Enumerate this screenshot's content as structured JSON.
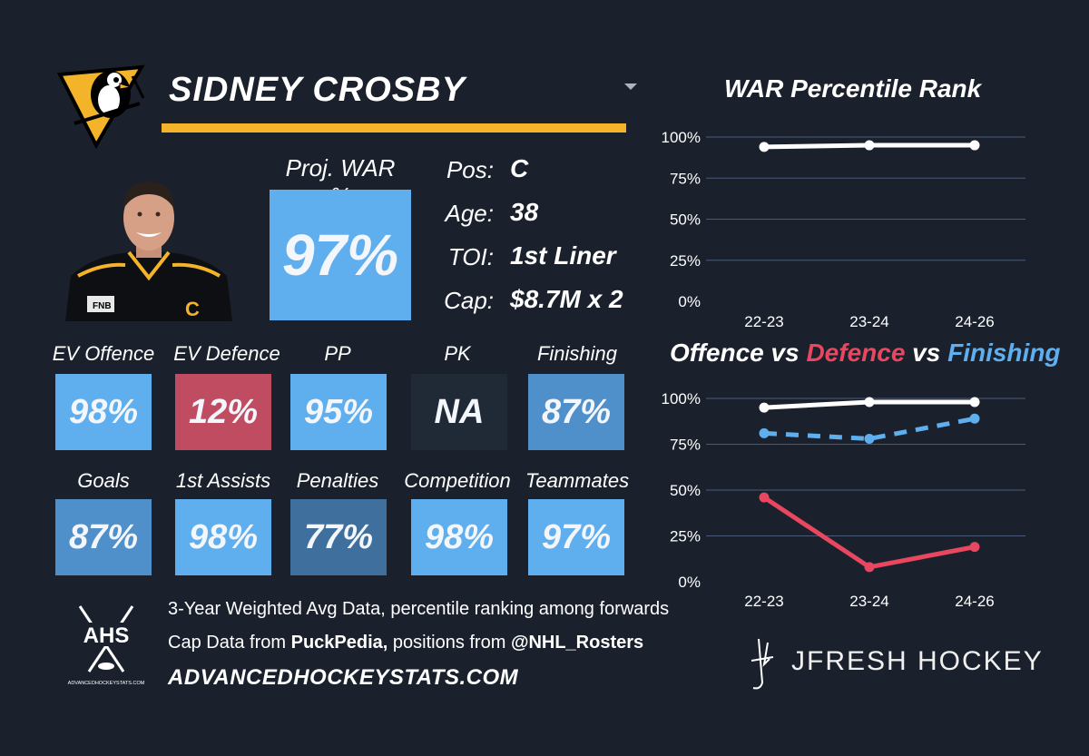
{
  "player": {
    "name": "SIDNEY CROSBY",
    "proj_war_label": "Proj. WAR %",
    "proj_war_value": "97%"
  },
  "info": {
    "pos_label": "Pos:",
    "pos_value": "C",
    "age_label": "Age:",
    "age_value": "38",
    "toi_label": "TOI:",
    "toi_value": "1st Liner",
    "cap_label": "Cap:",
    "cap_value": "$8.7M x 2"
  },
  "stats": [
    {
      "label": "EV Offence",
      "value": "98%",
      "color": "#5faeee"
    },
    {
      "label": "EV Defence",
      "value": "12%",
      "color": "#c04c62"
    },
    {
      "label": "PP",
      "value": "95%",
      "color": "#5faeee"
    },
    {
      "label": "PK",
      "value": "NA",
      "color": "#202a36"
    },
    {
      "label": "Finishing",
      "value": "87%",
      "color": "#4f8fca"
    },
    {
      "label": "Goals",
      "value": "87%",
      "color": "#4f8fca"
    },
    {
      "label": "1st Assists",
      "value": "98%",
      "color": "#5faeee"
    },
    {
      "label": "Penalties",
      "value": "77%",
      "color": "#3f6f9c"
    },
    {
      "label": "Competition",
      "value": "98%",
      "color": "#5faeee"
    },
    {
      "label": "Teammates",
      "value": "97%",
      "color": "#5faeee"
    }
  ],
  "footer": {
    "line1": "3-Year Weighted Avg Data, percentile ranking among forwards",
    "line2_pre": "Cap Data from ",
    "line2_bold1": "PuckPedia,",
    "line2_mid": " positions from ",
    "line2_bold2": "@NHL_Rosters",
    "site": "ADVANCEDHOCKEYSTATS.COM",
    "ahs_logo": "AHS",
    "ahs_logo_sub": "ADVANCEDHOCKEYSTATS.COM",
    "brand": "JFRESH HOCKEY"
  },
  "icons": {
    "team_logo": "penguins-logo-icon",
    "ahs_logo": "ahs-logo-icon",
    "jfresh_logo": "jfresh-logo-icon",
    "dropdown": "chevron-down-icon"
  },
  "colors": {
    "background": "#1b212c",
    "gold": "#f4b42a",
    "light_blue": "#5faeee",
    "defence_red": "#e8475f",
    "white": "#ffffff"
  },
  "chart_data": [
    {
      "type": "line",
      "title": "WAR Percentile Rank",
      "categories": [
        "22-23",
        "23-24",
        "24-26"
      ],
      "ylim": [
        0,
        100
      ],
      "yticks": [
        "0%",
        "25%",
        "50%",
        "75%",
        "100%"
      ],
      "grid": true,
      "series": [
        {
          "values": [
            94,
            95,
            95
          ],
          "color": "#ffffff",
          "dash": false
        }
      ]
    },
    {
      "type": "line",
      "title_parts": [
        {
          "text": "Offence",
          "color": "#ffffff"
        },
        {
          "text": " vs ",
          "color": "#ffffff"
        },
        {
          "text": "Defence",
          "color": "#e8475f"
        },
        {
          "text": " vs ",
          "color": "#ffffff"
        },
        {
          "text": "Finishing",
          "color": "#5faeee"
        }
      ],
      "categories": [
        "22-23",
        "23-24",
        "24-26"
      ],
      "ylim": [
        0,
        100
      ],
      "yticks": [
        "0%",
        "25%",
        "50%",
        "75%",
        "100%"
      ],
      "grid": true,
      "series": [
        {
          "name": "Offence",
          "values": [
            95,
            98,
            98
          ],
          "color": "#ffffff",
          "dash": false
        },
        {
          "name": "Finishing",
          "values": [
            81,
            78,
            89
          ],
          "color": "#5faeee",
          "dash": true
        },
        {
          "name": "Defence",
          "values": [
            46,
            8,
            19
          ],
          "color": "#e8475f",
          "dash": false
        }
      ]
    }
  ]
}
